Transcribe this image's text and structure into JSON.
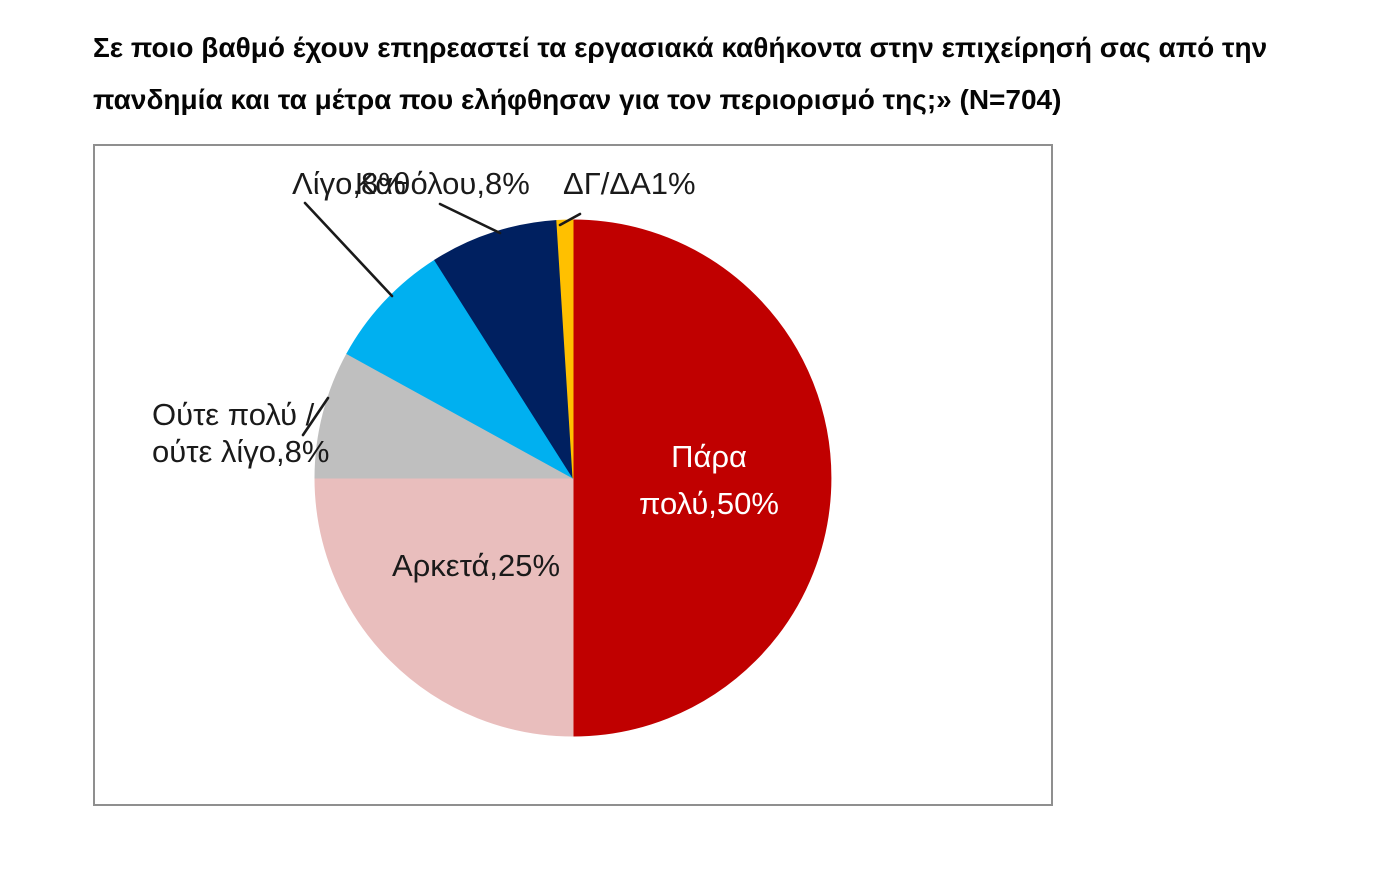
{
  "page": {
    "background": "#FFFFFF"
  },
  "title": {
    "line1": "Σε ποιο βαθμό έχουν επηρεαστεί τα εργασιακά καθήκοντα στην επιχείρησή σας από την",
    "line2": "πανδημία και τα μέτρα που ελήφθησαν για τον περιορισμό της;» (N=704)"
  },
  "chart_data": {
    "type": "pie",
    "title": "Σε ποιο βαθμό έχουν επηρεαστεί τα εργασιακά καθήκοντα στην επιχείρησή σας από την πανδημία και τα μέτρα που ελήφθησαν για τον περιορισμό της;» (N=704)",
    "sample_size": 704,
    "start_angle_deg": 0,
    "direction": "clockwise",
    "legend": "none",
    "plot_border_color": "#8F8F8F",
    "leader_line_color": "#1A1A1A",
    "slices": [
      {
        "category": "Πάρα πολύ",
        "value_pct": 50,
        "color": "#C00000",
        "data_label": "Πάρα πολύ,50%",
        "label_placement": "inside",
        "label_color": "#FFFFFF"
      },
      {
        "category": "Αρκετά",
        "value_pct": 25,
        "color": "#E9BEBD",
        "data_label": "Αρκετά,25%",
        "label_placement": "inside",
        "label_color": "#000000"
      },
      {
        "category": "Ούτε πολύ /ούτε λίγο",
        "value_pct": 8,
        "color": "#BFBFBF",
        "data_label": "Ούτε πολύ /\nούτε λίγο,8%",
        "label_placement": "outside",
        "label_color": "#000000"
      },
      {
        "category": "Λίγο",
        "value_pct": 8,
        "color": "#00B0F0",
        "data_label": "Λίγο,8%",
        "label_placement": "outside",
        "label_color": "#000000"
      },
      {
        "category": "Καθόλου",
        "value_pct": 8,
        "color": "#002060",
        "data_label": "Καθόλου,8%",
        "label_placement": "outside",
        "label_color": "#000000"
      },
      {
        "category": "ΔΓ/ΔΑ",
        "value_pct": 1,
        "color": "#FFC000",
        "data_label": "ΔΓ/ΔΑ1%",
        "label_placement": "outside",
        "label_color": "#000000"
      }
    ]
  }
}
